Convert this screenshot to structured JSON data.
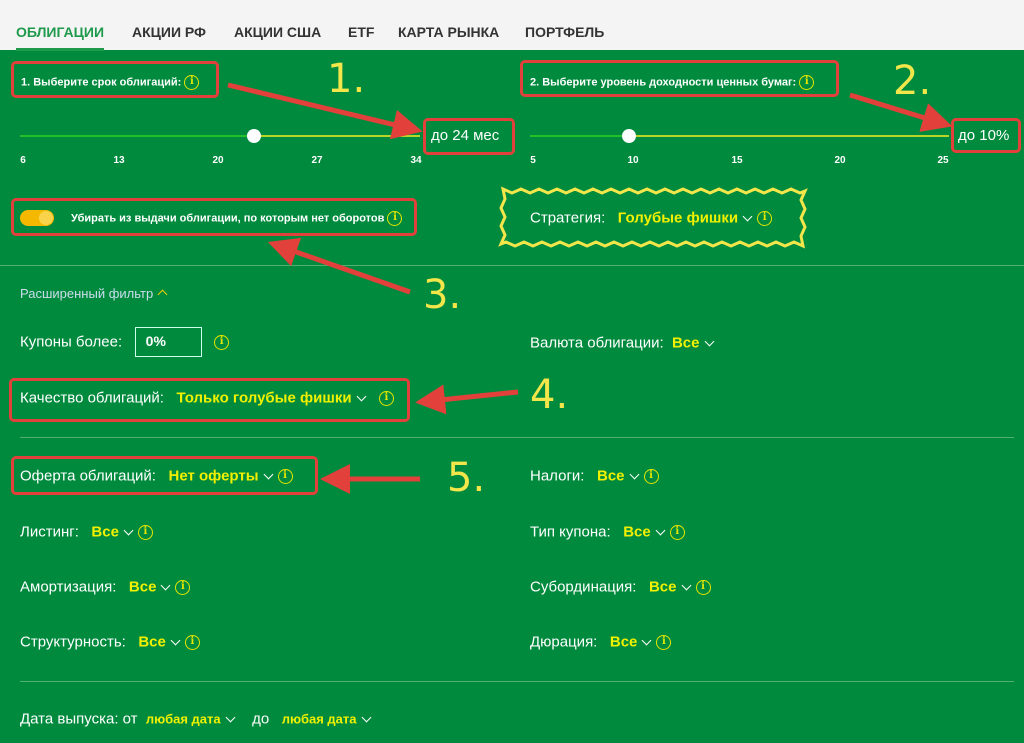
{
  "tabs": [
    "ОБЛИГАЦИИ",
    "АКЦИИ РФ",
    "АКЦИИ США",
    "ETF",
    "КАРТА РЫНКА",
    "ПОРТФЕЛЬ"
  ],
  "term": {
    "label": "1. Выберите срок облигаций:",
    "value": "до 24 мес",
    "ticks": [
      "6",
      "13",
      "20",
      "27",
      "34"
    ],
    "selected_fraction": 0.58
  },
  "yield": {
    "label": "2. Выберите уровень доходности ценных бумаг:",
    "value": "до 10%",
    "ticks": [
      "5",
      "10",
      "15",
      "20",
      "25"
    ],
    "selected_fraction": 0.24
  },
  "toggle": {
    "label": "Убирать из выдачи облигации, по которым нет оборотов",
    "on": true
  },
  "strategy": {
    "label": "Стратегия:",
    "value": "Голубые фишки"
  },
  "advanced": {
    "label": "Расширенный фильтр"
  },
  "filters": {
    "coupons": {
      "label": "Купоны более:",
      "value": "0%"
    },
    "currency": {
      "label": "Валюта облигации:",
      "value": "Все"
    },
    "quality": {
      "label": "Качество облигаций:",
      "value": "Только голубые фишки"
    },
    "offer": {
      "label": "Оферта облигаций:",
      "value": "Нет оферты"
    },
    "taxes": {
      "label": "Налоги:",
      "value": "Все"
    },
    "listing": {
      "label": "Листинг:",
      "value": "Все"
    },
    "coupon_type": {
      "label": "Тип купона:",
      "value": "Все"
    },
    "amortization": {
      "label": "Амортизация:",
      "value": "Все"
    },
    "subordination": {
      "label": "Субординация:",
      "value": "Все"
    },
    "structured": {
      "label": "Структурность:",
      "value": "Все"
    },
    "duration": {
      "label": "Дюрация:",
      "value": "Все"
    },
    "issue_date": {
      "label": "Дата выпуска: от",
      "from": "любая дата",
      "to_label": "до",
      "to": "любая дата"
    }
  },
  "annotations": [
    "1.",
    "2.",
    "3.",
    "4.",
    "5."
  ],
  "colors": {
    "background": "#008a3e",
    "accent": "#f0f000",
    "annotation": "#e2403a"
  }
}
